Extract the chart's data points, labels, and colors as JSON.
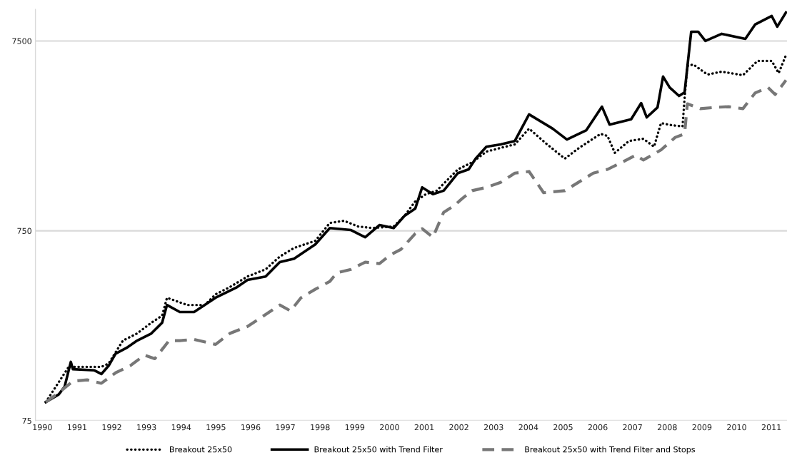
{
  "chart_data": {
    "type": "line",
    "log": "y",
    "ylim": [
      75,
      11000
    ],
    "yticks": [
      75,
      750,
      7500
    ],
    "xlim": [
      1989.8,
      2011.45
    ],
    "xticks": [
      1990,
      1991,
      1992,
      1993,
      1994,
      1995,
      1996,
      1997,
      1998,
      1999,
      2000,
      2001,
      2002,
      2003,
      2004,
      2005,
      2006,
      2007,
      2008,
      2009,
      2010,
      2011
    ],
    "grid": "y",
    "legend": "bottom",
    "marker": "none",
    "series": [
      {
        "name": "Breakout 25x50",
        "color": "#000000",
        "line_style": "dotted",
        "x": [
          1990.1,
          1990.78,
          1990.88,
          1991.7,
          1991.91,
          1992.32,
          1992.73,
          1993.14,
          1993.45,
          1993.59,
          1994.17,
          1994.68,
          1994.99,
          1995.4,
          1995.91,
          1996.43,
          1996.84,
          1997.25,
          1997.86,
          1998.28,
          1998.69,
          1999.1,
          1999.51,
          2000.12,
          2000.43,
          2000.74,
          2001.05,
          2001.36,
          2001.97,
          2002.38,
          2002.79,
          2003.2,
          2003.61,
          2004.02,
          2004.54,
          2005.05,
          2005.46,
          2006.08,
          2006.28,
          2006.49,
          2006.9,
          2007.31,
          2007.62,
          2007.82,
          2008.13,
          2008.44,
          2008.5,
          2008.58,
          2008.75,
          2009.16,
          2009.57,
          2010.18,
          2010.6,
          2011.01,
          2011.21,
          2011.42
        ],
        "values": [
          94,
          146,
          144,
          144,
          150,
          198,
          216,
          246,
          268,
          333,
          305,
          305,
          347,
          379,
          431,
          470,
          549,
          609,
          664,
          825,
          847,
          790,
          776,
          790,
          899,
          1070,
          1170,
          1220,
          1580,
          1720,
          1960,
          2050,
          2140,
          2590,
          2140,
          1800,
          2050,
          2430,
          2370,
          1930,
          2230,
          2290,
          2080,
          2770,
          2700,
          2660,
          3750,
          5540,
          5640,
          4990,
          5170,
          4950,
          5890,
          5890,
          5080,
          6310
        ]
      },
      {
        "name": "Breakout 25x50 with Trend Filter",
        "color": "#000000",
        "line_style": "solid",
        "x": [
          1990.1,
          1990.47,
          1990.64,
          1990.82,
          1990.88,
          1991.5,
          1991.7,
          1991.91,
          1992.11,
          1992.42,
          1992.73,
          1993.14,
          1993.45,
          1993.59,
          1993.96,
          1994.37,
          1994.99,
          1995.61,
          1995.91,
          1996.43,
          1996.84,
          1997.25,
          1997.86,
          1998.28,
          1998.89,
          1999.3,
          1999.71,
          2000.12,
          2000.43,
          2000.74,
          2000.94,
          2001.25,
          2001.56,
          2001.97,
          2002.28,
          2002.48,
          2002.79,
          2003.2,
          2003.61,
          2004.02,
          2004.7,
          2005.11,
          2005.67,
          2006.12,
          2006.34,
          2006.96,
          2007.25,
          2007.41,
          2007.72,
          2007.88,
          2008.07,
          2008.34,
          2008.5,
          2008.69,
          2008.89,
          2009.1,
          2009.57,
          2010.25,
          2010.53,
          2011.01,
          2011.17,
          2011.42
        ],
        "values": [
          94,
          103,
          113,
          153,
          140,
          138,
          132,
          146,
          169,
          181,
          198,
          216,
          246,
          305,
          280,
          280,
          333,
          379,
          413,
          431,
          513,
          535,
          636,
          776,
          757,
          694,
          804,
          776,
          899,
          981,
          1270,
          1170,
          1220,
          1510,
          1580,
          1800,
          2080,
          2140,
          2230,
          3080,
          2590,
          2270,
          2540,
          3380,
          2720,
          2900,
          3530,
          2970,
          3350,
          4870,
          4270,
          3850,
          4020,
          8390,
          8390,
          7500,
          8180,
          7700,
          9150,
          10150,
          8920,
          10600
        ]
      },
      {
        "name": "Breakout 25x50 with Trend Filter and Stops",
        "color": "#777777",
        "line_style": "dashed",
        "x": [
          1990.1,
          1990.47,
          1990.68,
          1990.88,
          1991.29,
          1991.7,
          1992.11,
          1992.53,
          1992.94,
          1993.24,
          1993.65,
          1993.96,
          1994.37,
          1994.99,
          1995.4,
          1995.91,
          1996.22,
          1996.84,
          1997.15,
          1997.45,
          1997.86,
          1998.28,
          1998.48,
          1998.89,
          1999.3,
          1999.71,
          2000.02,
          2000.33,
          2000.74,
          2000.94,
          2001.25,
          2001.56,
          2001.87,
          2002.07,
          2002.38,
          2002.79,
          2003.2,
          2003.61,
          2004.02,
          2004.44,
          2005.05,
          2005.87,
          2006.28,
          2006.69,
          2007.1,
          2007.31,
          2007.82,
          2008.23,
          2008.5,
          2008.58,
          2008.95,
          2009.36,
          2009.77,
          2010.18,
          2010.53,
          2010.9,
          2011.11,
          2011.42
        ],
        "values": [
          94,
          105,
          113,
          121,
          123,
          118,
          134,
          146,
          166,
          159,
          198,
          198,
          201,
          189,
          216,
          235,
          256,
          305,
          284,
          333,
          369,
          406,
          450,
          470,
          513,
          504,
          559,
          599,
          725,
          770,
          694,
          939,
          1020,
          1100,
          1220,
          1270,
          1350,
          1510,
          1540,
          1190,
          1220,
          1510,
          1580,
          1720,
          1880,
          1770,
          2000,
          2330,
          2430,
          3500,
          3300,
          3350,
          3380,
          3300,
          3990,
          4270,
          3920,
          4660
        ]
      }
    ]
  }
}
